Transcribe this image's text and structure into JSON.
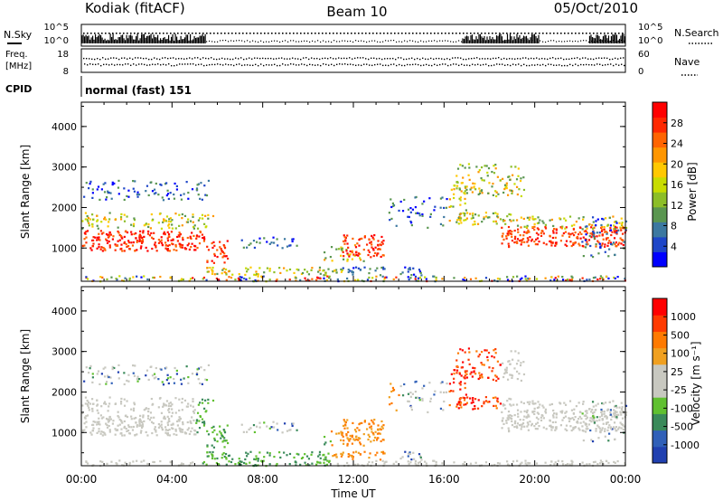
{
  "header": {
    "station": "Kodiak (fitACF)",
    "beam": "Beam 10",
    "date": "05/Oct/2010"
  },
  "small_panels": {
    "nsky_label": "N.Sky",
    "nsearch_label": "N.Search",
    "noise_ticks_left": [
      "10^5",
      "10^0"
    ],
    "noise_ticks_right": [
      "10^5",
      "10^0"
    ],
    "freq_label": "Freq.",
    "freq_unit": "[MHz]",
    "freq_ticks": [
      "18",
      "8"
    ],
    "nave_label": "Nave",
    "nave_ticks": [
      "60",
      "0"
    ],
    "cpid_label": "CPID",
    "cpid_value": "normal (fast) 151"
  },
  "chart_data": [
    {
      "type": "heatmap",
      "name": "power-panel",
      "x_axis": {
        "label": "Time UT",
        "range_hours": [
          0,
          24
        ],
        "tick_labels": [
          "00:00",
          "04:00",
          "08:00",
          "12:00",
          "16:00",
          "20:00",
          "00:00"
        ]
      },
      "y_axis": {
        "label": "Slant Range [km]",
        "range": [
          180,
          4600
        ],
        "tick_values": [
          1000,
          2000,
          3000,
          4000
        ],
        "tick_labels": [
          "1000",
          "2000",
          "3000",
          "4000"
        ]
      },
      "colorbar": {
        "label": "Power [dB]",
        "tick_labels": [
          "28",
          "24",
          "20",
          "16",
          "12",
          "8",
          "4"
        ],
        "colors": [
          "#0000ff",
          "#1e46c8",
          "#3c78a0",
          "#5a9650",
          "#8cbe28",
          "#c8dc00",
          "#ffc800",
          "#ff9600",
          "#ff6400",
          "#ff2800",
          "#ff0000"
        ]
      }
    },
    {
      "type": "heatmap",
      "name": "velocity-panel",
      "x_axis": {
        "label": "Time UT",
        "range_hours": [
          0,
          24
        ],
        "tick_labels": [
          "00:00",
          "04:00",
          "08:00",
          "12:00",
          "16:00",
          "20:00",
          "00:00"
        ]
      },
      "y_axis": {
        "label": "Slant Range [km]",
        "range": [
          180,
          4600
        ],
        "tick_values": [
          1000,
          2000,
          3000,
          4000
        ],
        "tick_labels": [
          "1000",
          "2000",
          "3000",
          "4000"
        ]
      },
      "colorbar": {
        "label": "Velocity [m s⁻¹]",
        "tick_labels": [
          "1000",
          "500",
          "100",
          "25",
          "-25",
          "-100",
          "-500",
          "-1000"
        ],
        "colors": [
          "#2040b0",
          "#3060b8",
          "#3a8a5a",
          "#60c030",
          "#c8c8c0",
          "#c8c8c0",
          "#f0a020",
          "#ff7a00",
          "#ff3a00",
          "#ff0000"
        ]
      }
    }
  ],
  "footer": {
    "time_label": "Time UT"
  }
}
